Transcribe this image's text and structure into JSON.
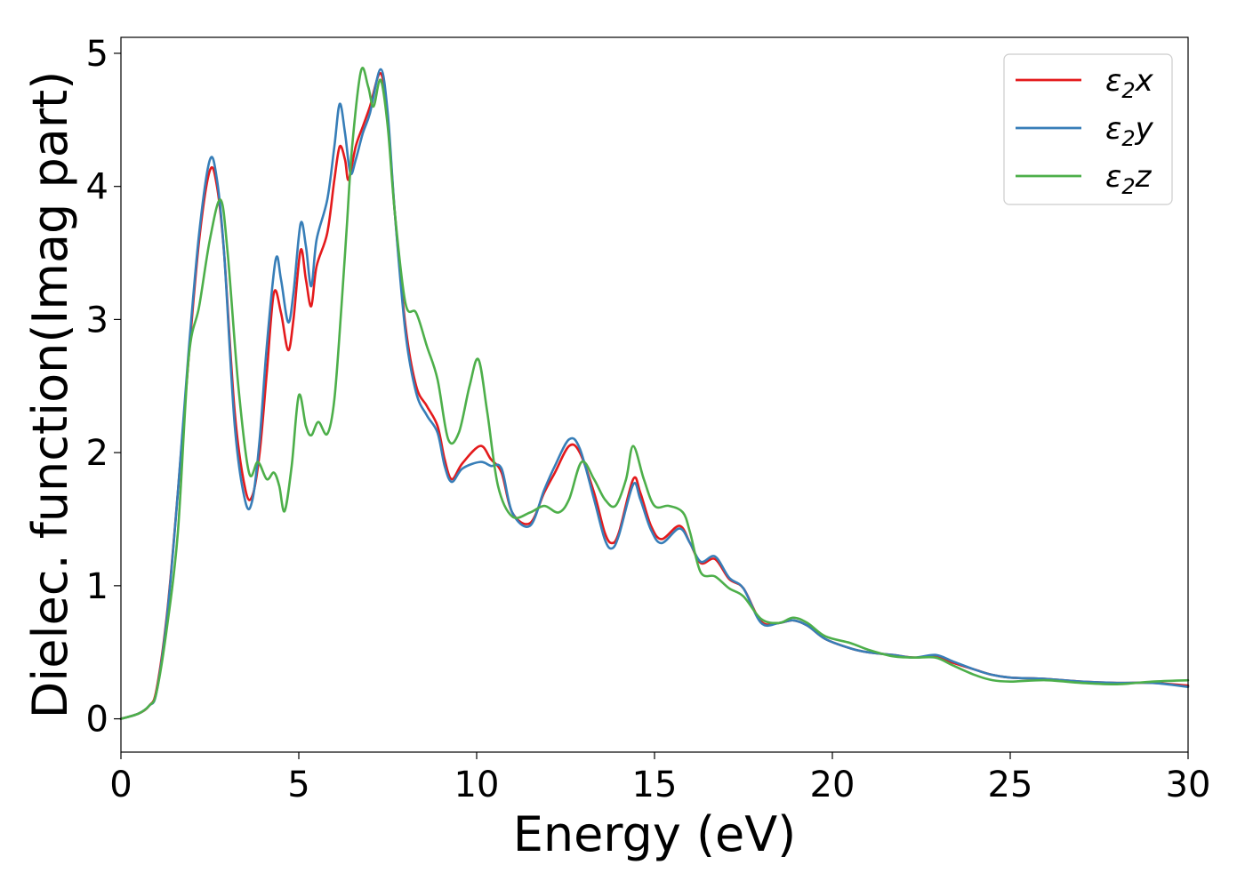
{
  "chart_data": {
    "type": "line",
    "title": "",
    "xlabel": "Energy (eV)",
    "ylabel": "Dielec. function(Imag part)",
    "xlim": [
      0,
      30
    ],
    "ylim": [
      -0.25,
      5.12
    ],
    "xticks": [
      0,
      5,
      10,
      15,
      20,
      25,
      30
    ],
    "yticks": [
      0,
      1,
      2,
      3,
      4,
      5
    ],
    "grid": false,
    "legend_position": "top-right",
    "series": [
      {
        "name": "ε2x",
        "legend_main": "ε",
        "legend_sub": "2",
        "legend_suffix": "x",
        "color": "#e41a1c",
        "points": [
          [
            0,
            0
          ],
          [
            0.5,
            0.04
          ],
          [
            0.8,
            0.1
          ],
          [
            1.0,
            0.22
          ],
          [
            1.3,
            0.8
          ],
          [
            1.6,
            1.7
          ],
          [
            1.9,
            2.7
          ],
          [
            2.2,
            3.6
          ],
          [
            2.5,
            4.12
          ],
          [
            2.7,
            4.0
          ],
          [
            2.9,
            3.5
          ],
          [
            3.2,
            2.3
          ],
          [
            3.5,
            1.72
          ],
          [
            3.7,
            1.68
          ],
          [
            3.9,
            2.0
          ],
          [
            4.1,
            2.6
          ],
          [
            4.3,
            3.2
          ],
          [
            4.5,
            3.05
          ],
          [
            4.7,
            2.77
          ],
          [
            4.85,
            3.0
          ],
          [
            5.05,
            3.52
          ],
          [
            5.2,
            3.3
          ],
          [
            5.35,
            3.1
          ],
          [
            5.5,
            3.4
          ],
          [
            5.8,
            3.65
          ],
          [
            6.0,
            4.05
          ],
          [
            6.15,
            4.3
          ],
          [
            6.3,
            4.2
          ],
          [
            6.4,
            4.05
          ],
          [
            6.6,
            4.3
          ],
          [
            6.8,
            4.45
          ],
          [
            7.0,
            4.6
          ],
          [
            7.3,
            4.85
          ],
          [
            7.5,
            4.5
          ],
          [
            7.7,
            3.8
          ],
          [
            8.0,
            2.95
          ],
          [
            8.3,
            2.5
          ],
          [
            8.6,
            2.35
          ],
          [
            8.9,
            2.2
          ],
          [
            9.1,
            1.95
          ],
          [
            9.3,
            1.8
          ],
          [
            9.6,
            1.92
          ],
          [
            10.1,
            2.05
          ],
          [
            10.4,
            1.95
          ],
          [
            10.7,
            1.85
          ],
          [
            11.0,
            1.55
          ],
          [
            11.5,
            1.47
          ],
          [
            11.9,
            1.7
          ],
          [
            12.2,
            1.85
          ],
          [
            12.6,
            2.05
          ],
          [
            12.9,
            2.0
          ],
          [
            13.3,
            1.7
          ],
          [
            13.6,
            1.4
          ],
          [
            13.8,
            1.32
          ],
          [
            14.0,
            1.4
          ],
          [
            14.4,
            1.8
          ],
          [
            14.6,
            1.7
          ],
          [
            14.9,
            1.45
          ],
          [
            15.2,
            1.35
          ],
          [
            15.7,
            1.45
          ],
          [
            16.0,
            1.32
          ],
          [
            16.3,
            1.17
          ],
          [
            16.7,
            1.2
          ],
          [
            17.1,
            1.05
          ],
          [
            17.5,
            0.98
          ],
          [
            18.0,
            0.73
          ],
          [
            18.5,
            0.72
          ],
          [
            18.9,
            0.74
          ],
          [
            19.3,
            0.7
          ],
          [
            19.8,
            0.6
          ],
          [
            20.5,
            0.53
          ],
          [
            21.0,
            0.5
          ],
          [
            21.7,
            0.48
          ],
          [
            22.3,
            0.46
          ],
          [
            22.9,
            0.47
          ],
          [
            23.4,
            0.42
          ],
          [
            24.0,
            0.37
          ],
          [
            24.5,
            0.33
          ],
          [
            25.0,
            0.31
          ],
          [
            26.0,
            0.3
          ],
          [
            27.0,
            0.28
          ],
          [
            28.0,
            0.27
          ],
          [
            29.0,
            0.27
          ],
          [
            30.0,
            0.25
          ]
        ]
      },
      {
        "name": "ε2y",
        "legend_main": "ε",
        "legend_sub": "2",
        "legend_suffix": "y",
        "color": "#377eb8",
        "points": [
          [
            0,
            0
          ],
          [
            0.5,
            0.04
          ],
          [
            0.8,
            0.1
          ],
          [
            1.0,
            0.2
          ],
          [
            1.3,
            0.78
          ],
          [
            1.6,
            1.7
          ],
          [
            1.9,
            2.75
          ],
          [
            2.2,
            3.65
          ],
          [
            2.5,
            4.2
          ],
          [
            2.7,
            4.05
          ],
          [
            2.9,
            3.5
          ],
          [
            3.2,
            2.2
          ],
          [
            3.5,
            1.63
          ],
          [
            3.7,
            1.65
          ],
          [
            3.9,
            2.1
          ],
          [
            4.1,
            2.8
          ],
          [
            4.35,
            3.45
          ],
          [
            4.5,
            3.3
          ],
          [
            4.7,
            2.98
          ],
          [
            4.85,
            3.2
          ],
          [
            5.05,
            3.72
          ],
          [
            5.2,
            3.55
          ],
          [
            5.35,
            3.25
          ],
          [
            5.5,
            3.6
          ],
          [
            5.8,
            3.9
          ],
          [
            6.0,
            4.3
          ],
          [
            6.15,
            4.62
          ],
          [
            6.3,
            4.4
          ],
          [
            6.45,
            4.1
          ],
          [
            6.6,
            4.2
          ],
          [
            6.8,
            4.4
          ],
          [
            7.0,
            4.55
          ],
          [
            7.3,
            4.88
          ],
          [
            7.5,
            4.55
          ],
          [
            7.7,
            3.8
          ],
          [
            8.0,
            2.9
          ],
          [
            8.3,
            2.45
          ],
          [
            8.6,
            2.28
          ],
          [
            8.9,
            2.15
          ],
          [
            9.1,
            1.9
          ],
          [
            9.3,
            1.78
          ],
          [
            9.6,
            1.88
          ],
          [
            10.1,
            1.93
          ],
          [
            10.4,
            1.9
          ],
          [
            10.7,
            1.88
          ],
          [
            11.0,
            1.55
          ],
          [
            11.5,
            1.45
          ],
          [
            11.9,
            1.72
          ],
          [
            12.2,
            1.9
          ],
          [
            12.6,
            2.1
          ],
          [
            12.9,
            2.03
          ],
          [
            13.3,
            1.65
          ],
          [
            13.6,
            1.35
          ],
          [
            13.8,
            1.28
          ],
          [
            14.0,
            1.38
          ],
          [
            14.4,
            1.76
          ],
          [
            14.6,
            1.65
          ],
          [
            14.9,
            1.42
          ],
          [
            15.2,
            1.32
          ],
          [
            15.7,
            1.43
          ],
          [
            16.0,
            1.32
          ],
          [
            16.3,
            1.18
          ],
          [
            16.7,
            1.22
          ],
          [
            17.1,
            1.06
          ],
          [
            17.5,
            0.98
          ],
          [
            18.0,
            0.72
          ],
          [
            18.5,
            0.72
          ],
          [
            18.9,
            0.74
          ],
          [
            19.3,
            0.7
          ],
          [
            19.8,
            0.6
          ],
          [
            20.5,
            0.53
          ],
          [
            21.0,
            0.5
          ],
          [
            21.7,
            0.48
          ],
          [
            22.3,
            0.46
          ],
          [
            22.9,
            0.48
          ],
          [
            23.4,
            0.43
          ],
          [
            24.0,
            0.37
          ],
          [
            24.5,
            0.33
          ],
          [
            25.0,
            0.31
          ],
          [
            26.0,
            0.3
          ],
          [
            27.0,
            0.28
          ],
          [
            28.0,
            0.27
          ],
          [
            29.0,
            0.27
          ],
          [
            30.0,
            0.24
          ]
        ]
      },
      {
        "name": "ε2z",
        "legend_main": "ε",
        "legend_sub": "2",
        "legend_suffix": "z",
        "color": "#4daf4a",
        "points": [
          [
            0,
            0
          ],
          [
            0.5,
            0.04
          ],
          [
            0.8,
            0.1
          ],
          [
            1.0,
            0.2
          ],
          [
            1.3,
            0.7
          ],
          [
            1.6,
            1.4
          ],
          [
            1.9,
            2.7
          ],
          [
            2.2,
            3.1
          ],
          [
            2.5,
            3.6
          ],
          [
            2.8,
            3.9
          ],
          [
            3.0,
            3.5
          ],
          [
            3.3,
            2.5
          ],
          [
            3.6,
            1.85
          ],
          [
            3.85,
            1.93
          ],
          [
            4.1,
            1.8
          ],
          [
            4.3,
            1.85
          ],
          [
            4.45,
            1.75
          ],
          [
            4.6,
            1.56
          ],
          [
            4.8,
            1.9
          ],
          [
            5.0,
            2.43
          ],
          [
            5.2,
            2.2
          ],
          [
            5.35,
            2.13
          ],
          [
            5.55,
            2.23
          ],
          [
            5.8,
            2.14
          ],
          [
            6.0,
            2.4
          ],
          [
            6.2,
            3.1
          ],
          [
            6.35,
            3.7
          ],
          [
            6.5,
            4.3
          ],
          [
            6.75,
            4.87
          ],
          [
            6.95,
            4.75
          ],
          [
            7.1,
            4.6
          ],
          [
            7.3,
            4.8
          ],
          [
            7.5,
            4.45
          ],
          [
            7.7,
            3.8
          ],
          [
            8.0,
            3.12
          ],
          [
            8.3,
            3.05
          ],
          [
            8.6,
            2.8
          ],
          [
            8.9,
            2.55
          ],
          [
            9.2,
            2.1
          ],
          [
            9.5,
            2.15
          ],
          [
            9.8,
            2.5
          ],
          [
            10.05,
            2.7
          ],
          [
            10.3,
            2.3
          ],
          [
            10.6,
            1.75
          ],
          [
            11.0,
            1.52
          ],
          [
            11.5,
            1.55
          ],
          [
            11.9,
            1.6
          ],
          [
            12.3,
            1.55
          ],
          [
            12.6,
            1.65
          ],
          [
            12.95,
            1.93
          ],
          [
            13.3,
            1.8
          ],
          [
            13.6,
            1.65
          ],
          [
            13.9,
            1.6
          ],
          [
            14.2,
            1.8
          ],
          [
            14.4,
            2.05
          ],
          [
            14.7,
            1.8
          ],
          [
            15.0,
            1.6
          ],
          [
            15.4,
            1.6
          ],
          [
            15.8,
            1.55
          ],
          [
            16.0,
            1.4
          ],
          [
            16.3,
            1.1
          ],
          [
            16.7,
            1.07
          ],
          [
            17.1,
            0.98
          ],
          [
            17.5,
            0.92
          ],
          [
            18.0,
            0.75
          ],
          [
            18.5,
            0.72
          ],
          [
            18.9,
            0.76
          ],
          [
            19.3,
            0.72
          ],
          [
            19.8,
            0.62
          ],
          [
            20.5,
            0.57
          ],
          [
            21.0,
            0.52
          ],
          [
            21.7,
            0.47
          ],
          [
            22.3,
            0.46
          ],
          [
            22.9,
            0.46
          ],
          [
            23.4,
            0.4
          ],
          [
            24.0,
            0.33
          ],
          [
            24.5,
            0.29
          ],
          [
            25.0,
            0.28
          ],
          [
            26.0,
            0.29
          ],
          [
            27.0,
            0.27
          ],
          [
            28.0,
            0.26
          ],
          [
            29.0,
            0.28
          ],
          [
            30.0,
            0.29
          ]
        ]
      }
    ]
  }
}
